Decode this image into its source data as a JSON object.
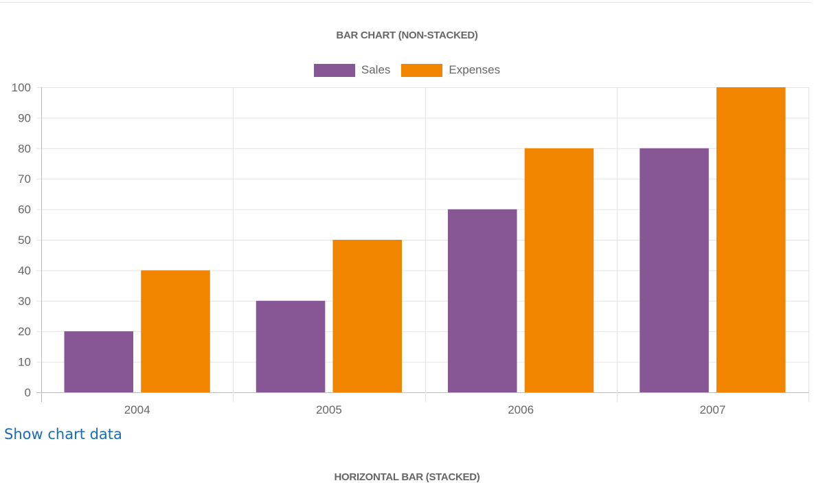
{
  "chart_data": {
    "type": "bar",
    "title": "BAR CHART (NON-STACKED)",
    "categories": [
      "2004",
      "2005",
      "2006",
      "2007"
    ],
    "series": [
      {
        "name": "Sales",
        "values": [
          20,
          30,
          60,
          80
        ],
        "color": "#875694"
      },
      {
        "name": "Expenses",
        "values": [
          40,
          50,
          80,
          100
        ],
        "color": "#f28500"
      }
    ],
    "ylim": [
      0,
      100
    ],
    "yticks": [
      "0",
      "10",
      "20",
      "30",
      "40",
      "50",
      "60",
      "70",
      "80",
      "90",
      "100"
    ],
    "grid": true,
    "legend": "top-center"
  },
  "links": {
    "show_chart_data": "Show chart data"
  },
  "next_chart": {
    "title": "HORIZONTAL BAR (STACKED)"
  }
}
